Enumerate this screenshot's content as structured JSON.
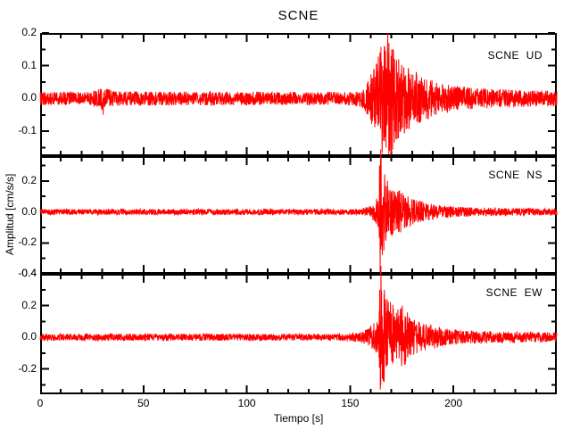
{
  "title": "SCNE",
  "xlabel": "Tiempo [s]",
  "ylabel": "Amplitud [cm/s/s]",
  "colors": {
    "trace": "#ff0000",
    "axis": "#000000",
    "background": "#ffffff"
  },
  "chart_data": {
    "type": "line",
    "title": "SCNE",
    "xlabel": "Tiempo [s]",
    "ylabel": "Amplitud [cm/s/s]",
    "legend_position": "none",
    "grid": false,
    "station": "SCNE",
    "components": [
      "UD",
      "NS",
      "EW"
    ],
    "x_range": [
      0,
      250
    ],
    "x_major_ticks": [
      0,
      50,
      100,
      150,
      200
    ],
    "x_major_tick_labels": [
      "0",
      "50",
      "100",
      "150",
      "200"
    ],
    "x_minor_tick_step": 10,
    "event": {
      "p_onset_s": 156,
      "s_onset_s": 164,
      "peak_s": 168,
      "coda_end_s": 205
    },
    "panels": [
      {
        "label": "SCNE  UD",
        "component": "UD",
        "ylim": [
          -0.176,
          0.2
        ],
        "ytick_values": [
          0.2,
          0.1,
          0,
          -0.1
        ],
        "ytick_labels": [
          "0.2",
          "0.1",
          "0.0",
          "-0.1"
        ],
        "yminor_ticks": [
          0.15,
          0.05,
          -0.05,
          -0.15
        ],
        "noise_amplitude": 0.02,
        "peak_amplitude": 0.2,
        "min_amplitude": -0.172,
        "envelope": [
          [
            0,
            0.02
          ],
          [
            25,
            0.02
          ],
          [
            30,
            0.034
          ],
          [
            36,
            0.022
          ],
          [
            150,
            0.02
          ],
          [
            156,
            0.03
          ],
          [
            159,
            0.06
          ],
          [
            162,
            0.1
          ],
          [
            164,
            0.14
          ],
          [
            166,
            0.18
          ],
          [
            169,
            0.19
          ],
          [
            172,
            0.13
          ],
          [
            176,
            0.11
          ],
          [
            180,
            0.09
          ],
          [
            186,
            0.07
          ],
          [
            192,
            0.05
          ],
          [
            200,
            0.04
          ],
          [
            210,
            0.032
          ],
          [
            225,
            0.028
          ],
          [
            250,
            0.024
          ]
        ],
        "spikes": [
          [
            30.5,
            -0.05
          ],
          [
            166.5,
            0.16
          ],
          [
            167.4,
            -0.15
          ],
          [
            168.2,
            0.2
          ],
          [
            168.7,
            -0.17
          ],
          [
            170.1,
            0.15
          ]
        ],
        "clip": [
          -0.172,
          0.2
        ],
        "seed": 101
      },
      {
        "label": "SCNE  NS",
        "component": "NS",
        "ylim": [
          -0.4,
          0.36
        ],
        "ytick_values": [
          0.2,
          0,
          -0.2,
          -0.4
        ],
        "ytick_labels": [
          "0.2",
          "0.0",
          "-0.2",
          "-0.4"
        ],
        "yminor_ticks": [
          0.3,
          0.1,
          -0.1,
          -0.3
        ],
        "noise_amplitude": 0.019,
        "peak_amplitude": 0.405,
        "min_amplitude": -0.4,
        "envelope": [
          [
            0,
            0.019
          ],
          [
            150,
            0.019
          ],
          [
            156,
            0.024
          ],
          [
            160,
            0.04
          ],
          [
            162,
            0.07
          ],
          [
            163.8,
            0.12
          ],
          [
            164.6,
            0.42
          ],
          [
            165.5,
            0.3
          ],
          [
            167,
            0.24
          ],
          [
            169,
            0.18
          ],
          [
            171,
            0.14
          ],
          [
            174,
            0.15
          ],
          [
            177,
            0.11
          ],
          [
            181,
            0.09
          ],
          [
            186,
            0.06
          ],
          [
            192,
            0.045
          ],
          [
            200,
            0.035
          ],
          [
            212,
            0.028
          ],
          [
            250,
            0.022
          ]
        ],
        "spikes": [
          [
            164.2,
            0.3
          ],
          [
            164.5,
            -0.4
          ],
          [
            164.8,
            0.405
          ],
          [
            166.3,
            -0.25
          ],
          [
            168.1,
            0.2
          ]
        ],
        "clip": [
          -0.4,
          0.405
        ],
        "seed": 202
      },
      {
        "label": "SCNE  EW",
        "component": "EW",
        "ylim": [
          -0.36,
          0.4
        ],
        "ytick_values": [
          0.4,
          0.2,
          0,
          -0.2
        ],
        "ytick_labels": [
          "0.4",
          "0.2",
          "0.0",
          "-0.2"
        ],
        "yminor_ticks": [
          0.3,
          0.1,
          -0.1,
          -0.3
        ],
        "noise_amplitude": 0.022,
        "peak_amplitude": 0.45,
        "min_amplitude": -0.34,
        "envelope": [
          [
            0,
            0.022
          ],
          [
            148,
            0.022
          ],
          [
            154,
            0.03
          ],
          [
            158,
            0.05
          ],
          [
            161,
            0.08
          ],
          [
            163.8,
            0.13
          ],
          [
            164.7,
            0.45
          ],
          [
            165.6,
            0.32
          ],
          [
            168,
            0.26
          ],
          [
            170,
            0.22
          ],
          [
            173,
            0.18
          ],
          [
            176,
            0.19
          ],
          [
            179,
            0.14
          ],
          [
            183,
            0.1
          ],
          [
            188,
            0.08
          ],
          [
            193,
            0.065
          ],
          [
            200,
            0.05
          ],
          [
            212,
            0.04
          ],
          [
            250,
            0.03
          ]
        ],
        "spikes": [
          [
            164.3,
            0.3
          ],
          [
            164.6,
            -0.33
          ],
          [
            164.9,
            0.45
          ],
          [
            166.6,
            0.3
          ],
          [
            175.2,
            0.2
          ]
        ],
        "clip": [
          -0.34,
          0.45
        ],
        "seed": 303
      }
    ]
  }
}
